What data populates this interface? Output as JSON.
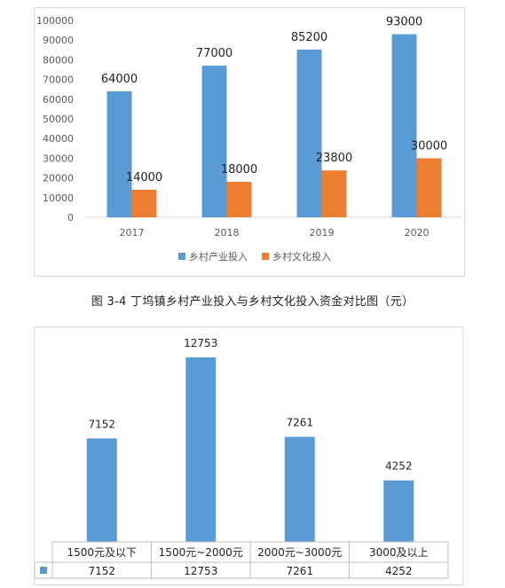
{
  "caption": "图 3-4  丁坞镇乡村产业投入与乡村文化投入资金对比图（元）",
  "chart_data": [
    {
      "type": "bar",
      "categories": [
        "2017",
        "2018",
        "2019",
        "2020"
      ],
      "series": [
        {
          "name": "乡村产业投入",
          "values": [
            64000,
            77000,
            85200,
            93000
          ],
          "color": "#5b9bd5"
        },
        {
          "name": "乡村文化投入",
          "values": [
            14000,
            18000,
            23800,
            30000
          ],
          "color": "#ed7d31"
        }
      ],
      "yticks": [
        "0",
        "10000",
        "20000",
        "30000",
        "40000",
        "50000",
        "60000",
        "70000",
        "80000",
        "90000",
        "100000"
      ],
      "ylim": [
        0,
        100000
      ],
      "grid": false,
      "legend": "bottom"
    },
    {
      "type": "bar",
      "categories": [
        "1500元及以下",
        "1500元~2000元",
        "2000元~3000元",
        "3000及以上"
      ],
      "series": [
        {
          "values": [
            7152,
            12753,
            7261,
            4252
          ],
          "color": "#5b9bd5"
        }
      ],
      "table": [
        "7152",
        "12753",
        "7261",
        "4252"
      ],
      "grid": false,
      "legend": "none"
    }
  ]
}
